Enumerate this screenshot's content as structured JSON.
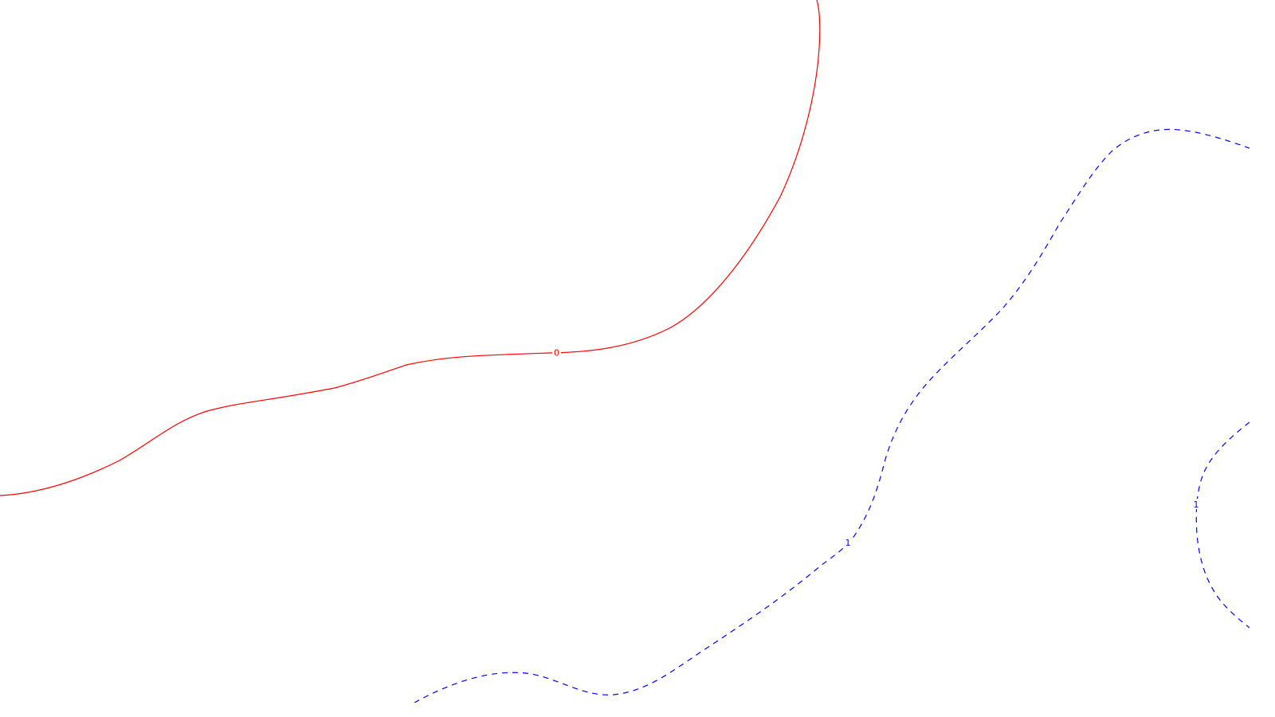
{
  "chart_data": {
    "type": "contour",
    "title": "",
    "xlabel": "",
    "ylabel": "",
    "grid": false,
    "legend": "none",
    "contours": [
      {
        "level": "0",
        "color": "#ff0000",
        "linestyle": "solid",
        "labels": [
          "0"
        ]
      },
      {
        "level": "1",
        "color": "#0000ff",
        "linestyle": "dashed",
        "labels": [
          "1",
          "1"
        ]
      }
    ]
  }
}
